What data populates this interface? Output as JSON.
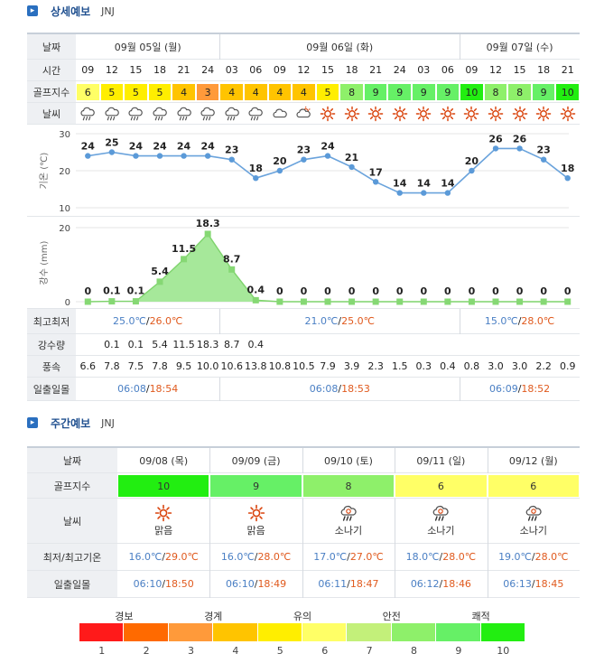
{
  "detail_header": {
    "title": "상세예보",
    "location": "JNJ"
  },
  "weekly_header": {
    "title": "주간예보",
    "location": "JNJ"
  },
  "detail": {
    "labels": {
      "date": "날짜",
      "time": "시간",
      "golf": "골프지수",
      "weather": "날씨",
      "temp_axis": "기온 (℃)",
      "rain_axis": "강수 (mm)",
      "minmax": "최고최저",
      "rain": "강수량",
      "wind": "풍속",
      "sun": "일출일몰"
    },
    "days": [
      {
        "label": "09월 05일 (월)",
        "min": "25.0℃",
        "max": "26.0℃",
        "sunrise": "06:08",
        "sunset": "18:54"
      },
      {
        "label": "09월 06일 (화)",
        "min": "21.0℃",
        "max": "25.0℃",
        "sunrise": "06:08",
        "sunset": "18:53"
      },
      {
        "label": "09월 07일 (수)",
        "min": "15.0℃",
        "max": "28.0℃",
        "sunrise": "06:09",
        "sunset": "18:52"
      }
    ],
    "times": [
      "09",
      "12",
      "15",
      "18",
      "21",
      "24",
      "03",
      "06",
      "09",
      "12",
      "15",
      "18",
      "21",
      "24",
      "03",
      "06",
      "09",
      "12",
      "15",
      "18",
      "21"
    ],
    "golf": [
      "6",
      "5",
      "5",
      "5",
      "4",
      "3",
      "4",
      "4",
      "4",
      "4",
      "5",
      "8",
      "9",
      "9",
      "9",
      "9",
      "10",
      "8",
      "8",
      "9",
      "10"
    ],
    "weather_icons": [
      "cloud-rain-icon",
      "cloud-rain-icon",
      "cloud-rain-icon",
      "cloud-rain-icon",
      "cloud-rain-icon",
      "cloud-rain-icon",
      "cloud-rain-icon",
      "cloud-rain-icon",
      "cloud-icon",
      "partly-cloudy-icon",
      "sun-icon",
      "sun-icon",
      "sun-icon",
      "sun-icon",
      "sun-icon",
      "sun-icon",
      "sun-icon",
      "sun-icon",
      "sun-icon",
      "sun-icon",
      "sun-icon"
    ],
    "rain": [
      "",
      "0.1",
      "0.1",
      "5.4",
      "11.5",
      "18.3",
      "8.7",
      "0.4",
      "",
      "",
      "",
      "",
      "",
      "",
      "",
      "",
      "",
      "",
      "",
      "",
      ""
    ],
    "wind": [
      "6.6",
      "7.8",
      "7.5",
      "7.8",
      "9.5",
      "10.0",
      "10.6",
      "13.8",
      "10.8",
      "10.5",
      "7.9",
      "3.9",
      "2.3",
      "1.5",
      "0.3",
      "0.4",
      "0.8",
      "3.0",
      "3.0",
      "2.2",
      "0.9"
    ]
  },
  "chart_data": [
    {
      "type": "line",
      "ylabel": "기온 (℃)",
      "ylim": [
        10,
        30
      ],
      "yticks": [
        "10",
        "20",
        "30"
      ],
      "x": [
        "09",
        "12",
        "15",
        "18",
        "21",
        "24",
        "03",
        "06",
        "09",
        "12",
        "15",
        "18",
        "21",
        "24",
        "03",
        "06",
        "09",
        "12",
        "15",
        "18",
        "21"
      ],
      "values": [
        24,
        25,
        24,
        24,
        24,
        24,
        23,
        18,
        20,
        23,
        24,
        21,
        17,
        14,
        14,
        14,
        20,
        26,
        26,
        23,
        18
      ],
      "value_labels": [
        "24",
        "25",
        "24",
        "24",
        "24",
        "24",
        "23",
        "18",
        "20",
        "23",
        "24",
        "21",
        "17",
        "14",
        "14",
        "14",
        "20",
        "26",
        "26",
        "23",
        "18"
      ],
      "grid": true
    },
    {
      "type": "area",
      "ylabel": "강수 (mm)",
      "ylim": [
        0,
        20
      ],
      "yticks": [
        "0",
        "20"
      ],
      "x": [
        "09",
        "12",
        "15",
        "18",
        "21",
        "24",
        "03",
        "06",
        "09",
        "12",
        "15",
        "18",
        "21",
        "24",
        "03",
        "06",
        "09",
        "12",
        "15",
        "18",
        "21"
      ],
      "values": [
        0,
        0.1,
        0.1,
        5.4,
        11.5,
        18.3,
        8.7,
        0.4,
        0,
        0,
        0,
        0,
        0,
        0,
        0,
        0,
        0,
        0,
        0,
        0,
        0
      ],
      "value_labels": [
        "0",
        "0.1",
        "0.1",
        "5.4",
        "11.5",
        "18.3",
        "8.7",
        "0.4",
        "0",
        "0",
        "0",
        "0",
        "0",
        "0",
        "0",
        "0",
        "0",
        "0",
        "0",
        "0",
        "0"
      ],
      "grid": true
    }
  ],
  "weekly": {
    "labels": {
      "date": "날짜",
      "golf": "골프지수",
      "weather": "날씨",
      "temp": "최저/최고기온",
      "sun": "일출일몰"
    },
    "days": [
      {
        "date": "09/08 (목)",
        "golf": "10",
        "icon": "sun-icon",
        "weather": "맑음",
        "min": "16.0℃",
        "max": "29.0℃",
        "sunrise": "06:10",
        "sunset": "18:50"
      },
      {
        "date": "09/09 (금)",
        "golf": "9",
        "icon": "sun-icon",
        "weather": "맑음",
        "min": "16.0℃",
        "max": "28.0℃",
        "sunrise": "06:10",
        "sunset": "18:49"
      },
      {
        "date": "09/10 (토)",
        "golf": "8",
        "icon": "shower-icon",
        "weather": "소나기",
        "min": "17.0℃",
        "max": "27.0℃",
        "sunrise": "06:11",
        "sunset": "18:47"
      },
      {
        "date": "09/11 (일)",
        "golf": "6",
        "icon": "shower-icon",
        "weather": "소나기",
        "min": "18.0℃",
        "max": "28.0℃",
        "sunrise": "06:12",
        "sunset": "18:46"
      },
      {
        "date": "09/12 (월)",
        "golf": "6",
        "icon": "shower-icon",
        "weather": "소나기",
        "min": "19.0℃",
        "max": "28.0℃",
        "sunrise": "06:13",
        "sunset": "18:45"
      }
    ]
  },
  "legend": {
    "categories": [
      "경보",
      "경계",
      "유의",
      "안전",
      "쾌적"
    ],
    "numbers": [
      "1",
      "2",
      "3",
      "4",
      "5",
      "6",
      "7",
      "8",
      "9",
      "10"
    ]
  },
  "golf_colors": {
    "1": "#ff1a1a",
    "2": "#ff6a00",
    "3": "#ff9a3a",
    "4": "#ffc400",
    "5": "#ffee00",
    "6": "#ffff66",
    "7": "#c3f07a",
    "8": "#8ef06a",
    "9": "#66f066",
    "10": "#22ee11"
  }
}
